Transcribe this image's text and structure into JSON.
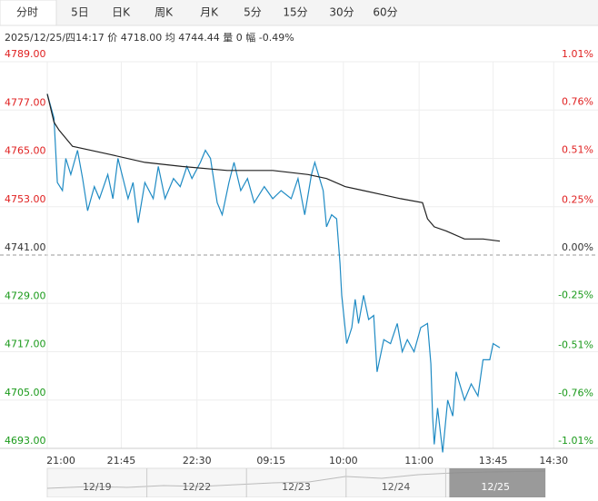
{
  "tabs": [
    "分时",
    "5日",
    "日K",
    "周K",
    "月K",
    "5分",
    "15分",
    "30分",
    "60分"
  ],
  "selected_tab": 0,
  "info": {
    "time": "2025/12/25/四14:17",
    "price_label": "价",
    "price": "4718.00",
    "avg_label": "均",
    "avg": "4744.44",
    "vol_label": "量",
    "vol": "0",
    "chg_label": "幅",
    "chg": "-0.49%"
  },
  "chart_data": {
    "type": "line",
    "xlim": [
      0,
      296
    ],
    "xticks": [
      {
        "value": 0,
        "label": "21:00"
      },
      {
        "value": 44,
        "label": "21:45"
      },
      {
        "value": 89,
        "label": "22:30"
      },
      {
        "value": 133,
        "label": "09:15"
      },
      {
        "value": 176,
        "label": "10:00"
      },
      {
        "value": 221,
        "label": "11:00"
      },
      {
        "value": 265,
        "label": "13:45"
      },
      {
        "value": 301,
        "label": "14:30"
      }
    ],
    "ylim": [
      4693,
      4789
    ],
    "yticks": [
      {
        "value": 4789,
        "label": "4789.00"
      },
      {
        "value": 4777,
        "label": "4777.00"
      },
      {
        "value": 4765,
        "label": "4765.00"
      },
      {
        "value": 4753,
        "label": "4753.00"
      },
      {
        "value": 4741,
        "label": "4741.00"
      },
      {
        "value": 4729,
        "label": "4729.00"
      },
      {
        "value": 4717,
        "label": "4717.00"
      },
      {
        "value": 4705,
        "label": "4705.00"
      },
      {
        "value": 4693,
        "label": "4693.00"
      }
    ],
    "y2lim": [
      -1.01,
      1.01
    ],
    "y2ticks": [
      {
        "value": 1.01,
        "label": "1.01%"
      },
      {
        "value": 0.76,
        "label": "0.76%"
      },
      {
        "value": 0.51,
        "label": "0.51%"
      },
      {
        "value": 0.25,
        "label": "0.25%"
      },
      {
        "value": 0,
        "label": "0.00%"
      },
      {
        "value": -0.25,
        "label": "-0.25%"
      },
      {
        "value": -0.51,
        "label": "-0.51%"
      },
      {
        "value": -0.76,
        "label": "-0.76%"
      },
      {
        "value": -1.01,
        "label": "-1.01%"
      }
    ],
    "baseline": 4741,
    "grid": true,
    "up_color": "#e02020",
    "down_color": "#1a9a1a",
    "flat_color": "#333333",
    "series": [
      {
        "color": "#1f8bc4",
        "x": [
          0,
          4,
          6,
          9,
          11,
          14,
          18,
          21,
          24,
          28,
          31,
          36,
          39,
          42,
          48,
          51,
          54,
          58,
          63,
          66,
          70,
          75,
          79,
          83,
          86,
          91,
          94,
          97,
          101,
          104,
          108,
          111,
          115,
          119,
          123,
          129,
          134,
          139,
          145,
          149,
          153,
          157,
          159,
          164,
          166,
          169,
          172,
          174,
          175,
          178,
          181,
          183,
          185,
          188,
          191,
          194,
          196,
          200,
          204,
          208,
          211,
          214,
          218,
          222,
          226,
          228,
          229,
          230,
          232,
          235,
          238,
          241,
          243,
          248,
          252,
          256,
          259,
          263,
          265,
          269
        ],
        "values": [
          4781,
          4775,
          4759,
          4757,
          4765,
          4761,
          4767,
          4760,
          4752,
          4758,
          4755,
          4761,
          4755,
          4765,
          4755,
          4759,
          4749,
          4759,
          4755,
          4763,
          4755,
          4760,
          4758,
          4763,
          4760,
          4764,
          4767,
          4765,
          4754,
          4751,
          4759,
          4764,
          4757,
          4760,
          4754,
          4758,
          4755,
          4757,
          4755,
          4760,
          4751,
          4761,
          4764,
          4757,
          4748,
          4751,
          4750,
          4739,
          4731,
          4719,
          4723,
          4730,
          4724,
          4731,
          4725,
          4726,
          4712,
          4720,
          4719,
          4724,
          4717,
          4720,
          4717,
          4723,
          4724,
          4714,
          4701,
          4694,
          4703,
          4692,
          4705,
          4701,
          4712,
          4705,
          4709,
          4706,
          4715,
          4715,
          4719,
          4718
        ]
      },
      {
        "color": "#222222",
        "x": [
          0,
          4,
          7,
          15,
          37,
          58,
          80,
          107,
          134,
          155,
          166,
          177,
          188,
          199,
          210,
          223,
          226,
          230,
          237,
          248,
          259,
          269
        ],
        "values": [
          4781,
          4774,
          4772,
          4768,
          4766,
          4764,
          4763,
          4762,
          4762,
          4761,
          4760,
          4758,
          4757,
          4756,
          4755,
          4754,
          4750,
          4748,
          4747,
          4745,
          4745,
          4744.44
        ]
      }
    ]
  },
  "navigator": {
    "labels": [
      "12/19",
      "12/22",
      "12/23",
      "12/24",
      "12/25"
    ],
    "selected": 4
  }
}
